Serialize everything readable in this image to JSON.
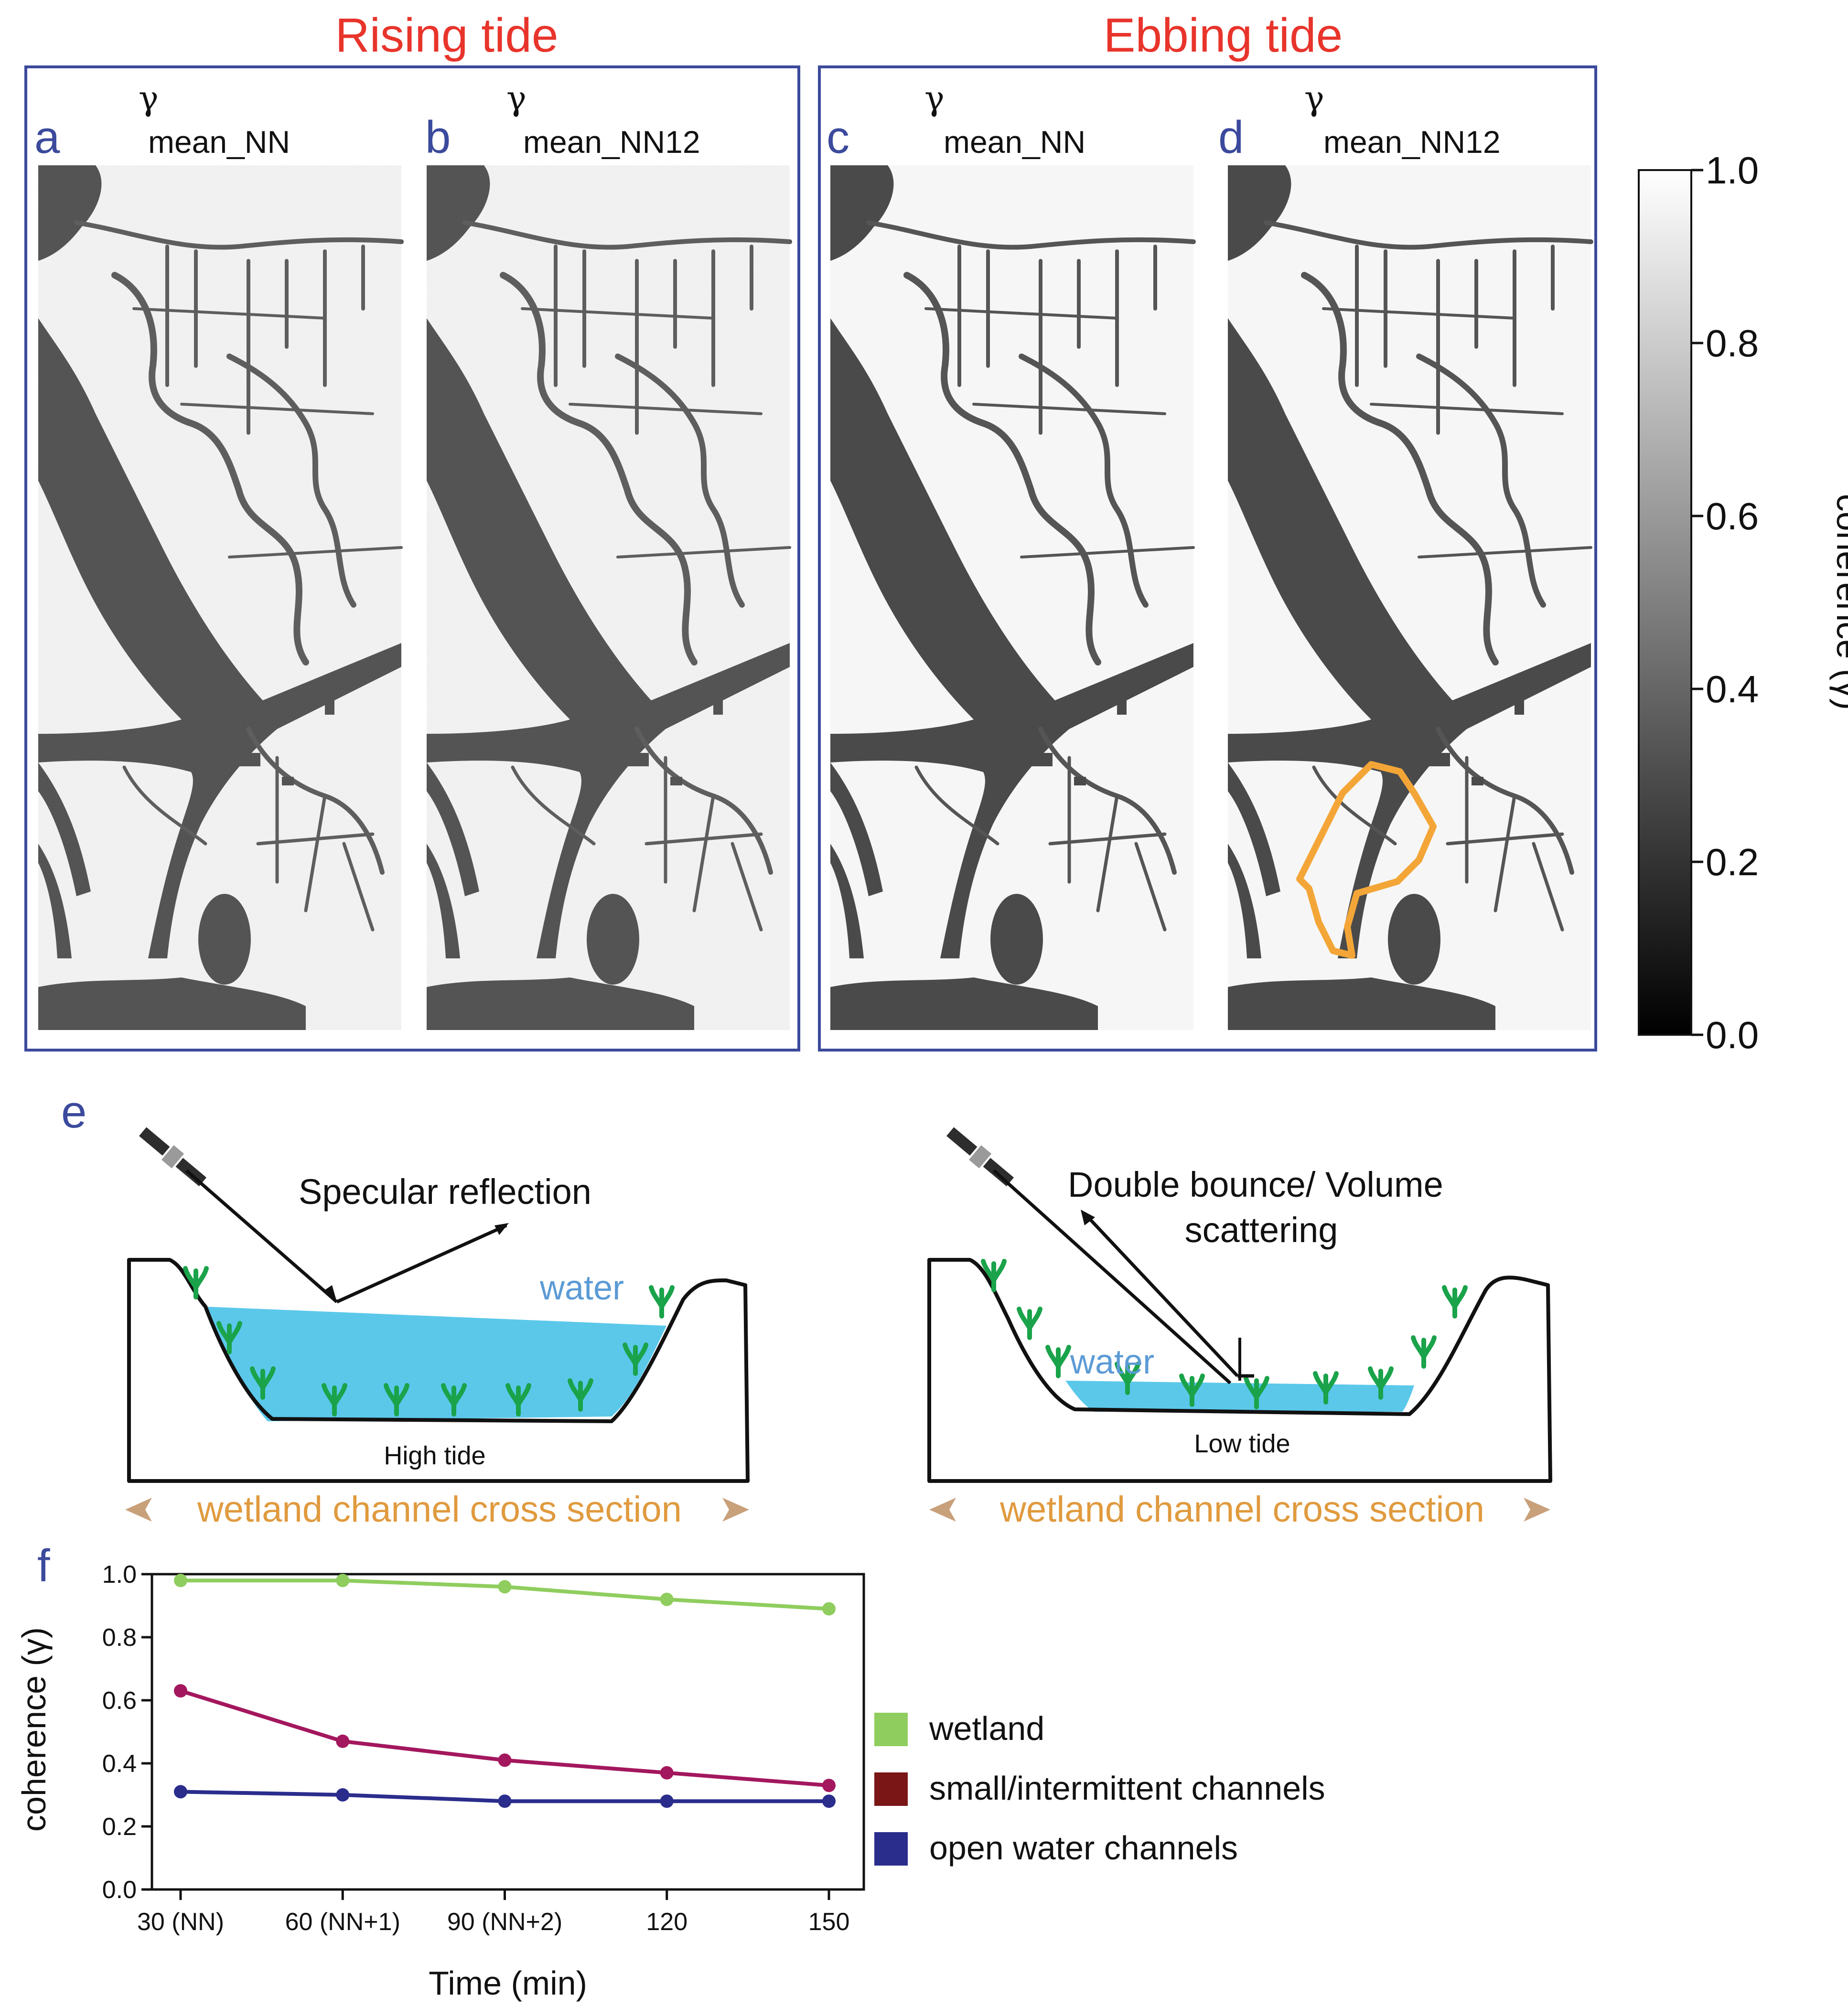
{
  "titles": {
    "rising": "Rising tide",
    "ebbing": "Ebbing tide"
  },
  "panels": [
    {
      "letter": "a",
      "gamma": "γ",
      "subscript": "mean_NN"
    },
    {
      "letter": "b",
      "gamma": "γ",
      "subscript": "mean_NN12"
    },
    {
      "letter": "c",
      "gamma": "γ",
      "subscript": "mean_NN"
    },
    {
      "letter": "d",
      "gamma": "γ",
      "subscript": "mean_NN12"
    }
  ],
  "colorbar": {
    "label": "coherence (γ)",
    "ticks": [
      "1.0",
      "0.8",
      "0.6",
      "0.4",
      "0.2",
      "0.0"
    ]
  },
  "diagram": {
    "letter": "e",
    "left": {
      "mechanism": "Specular reflection",
      "water": "water",
      "tide": "High tide",
      "section": "wetland channel cross section"
    },
    "right": {
      "mechanism_line1": "Double bounce/ Volume",
      "mechanism_line2": "scattering",
      "water": "water",
      "tide": "Low tide",
      "section": "wetland channel cross section"
    }
  },
  "colors": {
    "wetland": "#8fcd5e",
    "small_channels": "#a3175e",
    "open_water": "#2a2d8c",
    "legend_small": "#7a1616",
    "frame": "#3b4a9c",
    "title": "#e8342b",
    "highlight": "#f3a637",
    "water_fill": "#5bc8ea",
    "plant": "#1aa34a"
  },
  "chart_data": {
    "type": "line",
    "letter": "f",
    "categories": [
      "30 (NN)",
      "60 (NN+1)",
      "90 (NN+2)",
      "120",
      "150"
    ],
    "x": [
      30,
      60,
      90,
      120,
      150
    ],
    "series": [
      {
        "name": "wetland",
        "values": [
          0.98,
          0.98,
          0.96,
          0.92,
          0.89
        ]
      },
      {
        "name": "small/intermittent channels",
        "values": [
          0.63,
          0.47,
          0.41,
          0.37,
          0.33
        ]
      },
      {
        "name": "open water channels",
        "values": [
          0.31,
          0.3,
          0.28,
          0.28,
          0.28
        ]
      }
    ],
    "ylim": [
      0.0,
      1.0
    ],
    "yticks": [
      "0.0",
      "0.2",
      "0.4",
      "0.6",
      "0.8",
      "1.0"
    ],
    "xlabel": "Time (min)",
    "ylabel": "coherence (γ)",
    "legend": [
      "wetland",
      "small/intermittent channels",
      "open water channels"
    ]
  }
}
